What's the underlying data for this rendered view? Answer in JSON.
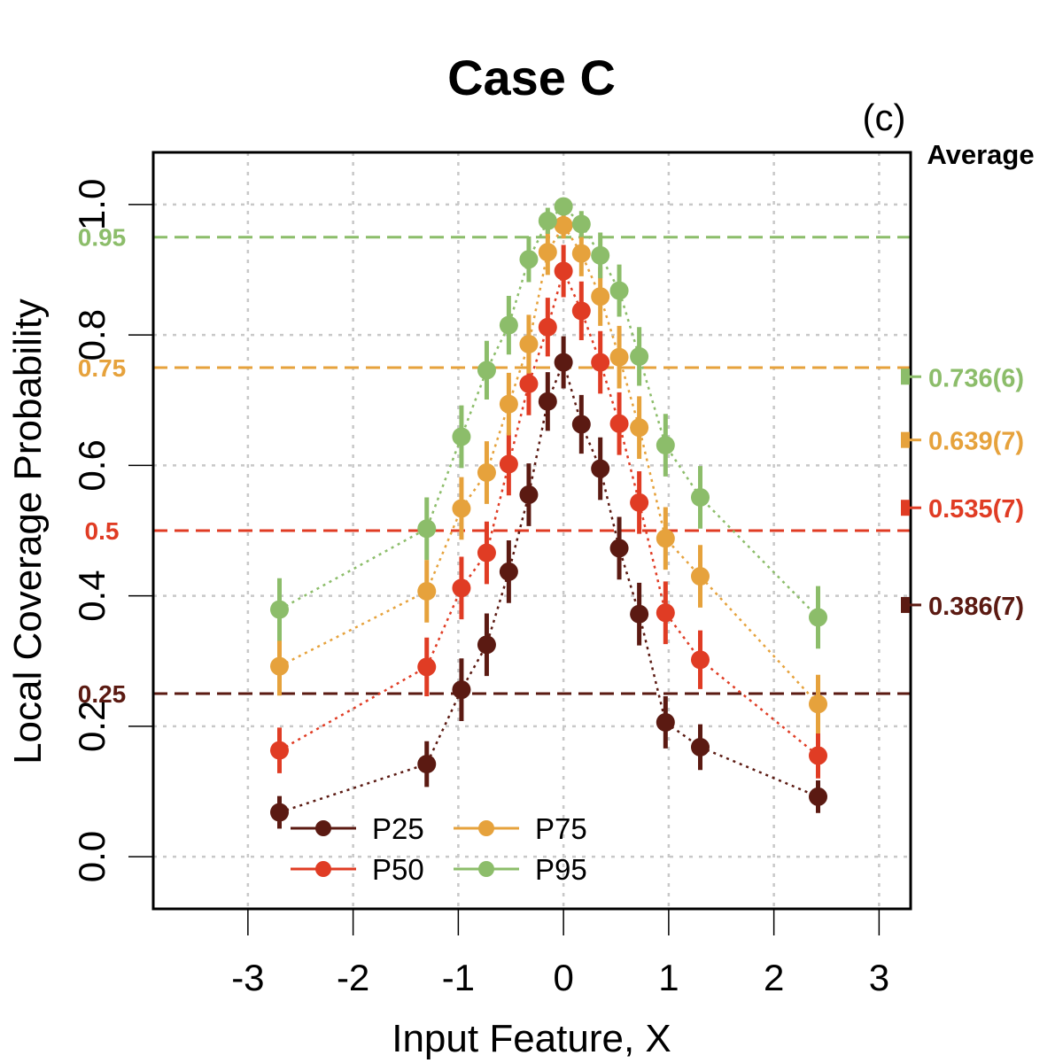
{
  "title": "Case C",
  "panel_label": "(c)",
  "average_header": "Average",
  "chart_data": {
    "type": "scatter",
    "title": "Case C",
    "xlabel": "Input Feature, X",
    "ylabel": "Local Coverage Probability",
    "xlim": [
      -3.9,
      3.3
    ],
    "ylim": [
      -0.08,
      1.08
    ],
    "xticks": [
      -3,
      -2,
      -1,
      0,
      1,
      2,
      3
    ],
    "xtick_labels": [
      "-3",
      "-2",
      "-1",
      "0",
      "1",
      "2",
      "3"
    ],
    "yticks": [
      0,
      0.2,
      0.4,
      0.6,
      0.8,
      1.0
    ],
    "ytick_labels": [
      "0.0",
      "0.2",
      "0.4",
      "0.6",
      "0.8",
      "1.0"
    ],
    "grid": true,
    "x": [
      -2.7,
      -1.3,
      -0.97,
      -0.73,
      -0.52,
      -0.33,
      -0.15,
      0.0,
      0.17,
      0.35,
      0.53,
      0.72,
      0.97,
      1.3,
      2.42
    ],
    "series": [
      {
        "name": "P25",
        "color": "#5b1a12",
        "nominal": 0.25,
        "nominal_label": "0.25",
        "average_label": "0.386(7)",
        "average": 0.386,
        "values": [
          0.068,
          0.142,
          0.256,
          0.325,
          0.437,
          0.555,
          0.698,
          0.758,
          0.663,
          0.595,
          0.473,
          0.372,
          0.206,
          0.168,
          0.092
        ],
        "errors": [
          0.025,
          0.035,
          0.048,
          0.048,
          0.048,
          0.048,
          0.045,
          0.04,
          0.045,
          0.048,
          0.048,
          0.048,
          0.04,
          0.035,
          0.025
        ]
      },
      {
        "name": "P50",
        "color": "#e03c24",
        "nominal": 0.5,
        "nominal_label": "0.5",
        "average_label": "0.535(7)",
        "average": 0.535,
        "values": [
          0.163,
          0.291,
          0.412,
          0.466,
          0.602,
          0.725,
          0.812,
          0.898,
          0.837,
          0.758,
          0.664,
          0.543,
          0.374,
          0.302,
          0.155
        ],
        "errors": [
          0.035,
          0.045,
          0.048,
          0.048,
          0.048,
          0.048,
          0.045,
          0.04,
          0.045,
          0.048,
          0.048,
          0.048,
          0.048,
          0.045,
          0.035
        ]
      },
      {
        "name": "P75",
        "color": "#e6a23c",
        "nominal": 0.75,
        "nominal_label": "0.75",
        "average_label": "0.639(7)",
        "average": 0.639,
        "values": [
          0.292,
          0.407,
          0.534,
          0.589,
          0.694,
          0.786,
          0.927,
          0.968,
          0.925,
          0.859,
          0.766,
          0.658,
          0.488,
          0.43,
          0.234
        ],
        "errors": [
          0.045,
          0.048,
          0.048,
          0.048,
          0.048,
          0.045,
          0.035,
          0.02,
          0.035,
          0.045,
          0.048,
          0.048,
          0.048,
          0.048,
          0.045
        ]
      },
      {
        "name": "P95",
        "color": "#8cbd6a",
        "nominal": 0.95,
        "nominal_label": "0.95",
        "average_label": "0.736(6)",
        "average": 0.736,
        "values": [
          0.379,
          0.503,
          0.644,
          0.746,
          0.815,
          0.916,
          0.975,
          0.997,
          0.97,
          0.922,
          0.868,
          0.767,
          0.631,
          0.551,
          0.367
        ],
        "errors": [
          0.048,
          0.048,
          0.048,
          0.045,
          0.045,
          0.035,
          0.02,
          0.01,
          0.02,
          0.035,
          0.04,
          0.045,
          0.048,
          0.048,
          0.048
        ]
      }
    ],
    "legend": {
      "position": "bottom-left",
      "columns": 2,
      "order": [
        "P25",
        "P50",
        "P75",
        "P95"
      ]
    }
  }
}
